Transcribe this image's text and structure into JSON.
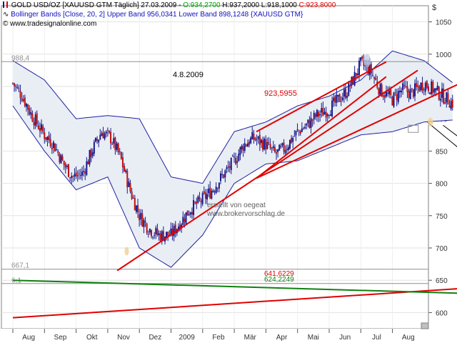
{
  "legend": {
    "line1": {
      "instrument": "GOLD USD/OZ [XAUUSD GTM",
      "period": "Täglich] 27.03.2009 -",
      "open": "O:934,2700",
      "high": "H:937,2000",
      "low": "L:918,1000",
      "close": "C:923,8000"
    },
    "line2": {
      "indicator": "Bollinger Bands [Close, 20, 2]",
      "upper": "Upper Band 956,0341",
      "lower": "Lower Band 898,1248",
      "source": "{XAUUSD GTM}"
    },
    "copyright": "© www.tradesignalonline.com"
  },
  "currency_symbol": "$",
  "annotations": {
    "date_label": "4.8.2009",
    "price_label": "923,5955",
    "credit_line1": "erstellt von oegeat",
    "credit_line2": "www.brokervorschlag.de",
    "red_line_value": "641,6229",
    "green_line_value": "624,2249",
    "level_high": "988,4",
    "level_low": "667,1",
    "level_other": "6,1"
  },
  "colors": {
    "candle": "#1a1a8c",
    "band": "#2020a0",
    "band_fill": "#e8eef4",
    "trend_red": "#e00000",
    "trend_green": "#108010",
    "arrow": "#000000",
    "open_text": "#00a000",
    "close_text": "#e00000",
    "band_text": "#1010c0"
  },
  "chart_data": {
    "type": "candlestick",
    "y_axis": {
      "min": 575,
      "max": 1075,
      "ticks": [
        600,
        650,
        700,
        750,
        800,
        850,
        900,
        950,
        1000,
        1050
      ]
    },
    "x_axis": {
      "ticks": [
        "Aug",
        "Sep",
        "Okt",
        "Nov",
        "Dez",
        "2009",
        "Feb",
        "Mär",
        "Apr",
        "Mai",
        "Jun",
        "Jul",
        "Aug"
      ]
    },
    "horizontal_levels": [
      {
        "label": "988,4",
        "value": 988.4
      },
      {
        "label": "667,1",
        "value": 667.1
      },
      {
        "label": "6,1",
        "value": 645
      }
    ],
    "close_path": [
      [
        0,
        955
      ],
      [
        0.3,
        935
      ],
      [
        0.6,
        905
      ],
      [
        1.0,
        875
      ],
      [
        1.3,
        860
      ],
      [
        1.6,
        830
      ],
      [
        1.9,
        810
      ],
      [
        2.2,
        815
      ],
      [
        2.5,
        850
      ],
      [
        2.8,
        880
      ],
      [
        3.1,
        870
      ],
      [
        3.4,
        840
      ],
      [
        3.7,
        790
      ],
      [
        4.0,
        750
      ],
      [
        4.3,
        730
      ],
      [
        4.6,
        720
      ],
      [
        5.0,
        720
      ],
      [
        5.3,
        740
      ],
      [
        5.6,
        760
      ],
      [
        6.0,
        775
      ],
      [
        6.3,
        790
      ],
      [
        6.6,
        810
      ],
      [
        7.0,
        835
      ],
      [
        7.3,
        860
      ],
      [
        7.6,
        870
      ],
      [
        8.0,
        860
      ],
      [
        8.3,
        845
      ],
      [
        8.6,
        855
      ],
      [
        9.0,
        880
      ],
      [
        9.3,
        890
      ],
      [
        9.6,
        905
      ],
      [
        10.0,
        915
      ],
      [
        10.3,
        930
      ],
      [
        10.6,
        945
      ],
      [
        11.0,
        985
      ],
      [
        11.3,
        975
      ],
      [
        11.6,
        945
      ],
      [
        12.0,
        930
      ],
      [
        12.3,
        945
      ],
      [
        12.6,
        940
      ],
      [
        13.0,
        955
      ],
      [
        13.3,
        945
      ],
      [
        13.6,
        935
      ],
      [
        13.9,
        924
      ]
    ],
    "upper_band": [
      [
        0,
        990
      ],
      [
        1,
        960
      ],
      [
        2,
        900
      ],
      [
        3,
        905
      ],
      [
        4,
        900
      ],
      [
        5,
        810
      ],
      [
        6,
        800
      ],
      [
        7,
        880
      ],
      [
        8,
        895
      ],
      [
        9,
        920
      ],
      [
        10,
        935
      ],
      [
        11,
        960
      ],
      [
        12,
        1005
      ],
      [
        13,
        990
      ],
      [
        13.9,
        956
      ]
    ],
    "lower_band": [
      [
        0,
        920
      ],
      [
        1,
        850
      ],
      [
        2,
        790
      ],
      [
        3,
        810
      ],
      [
        4,
        700
      ],
      [
        5,
        670
      ],
      [
        6,
        720
      ],
      [
        7,
        800
      ],
      [
        8,
        830
      ],
      [
        9,
        835
      ],
      [
        10,
        855
      ],
      [
        11,
        875
      ],
      [
        12,
        880
      ],
      [
        13,
        895
      ],
      [
        13.9,
        898
      ]
    ],
    "trend_lines": [
      {
        "color": "red",
        "points": [
          [
            3.3,
            665
          ],
          [
            12.8,
            975
          ]
        ]
      },
      {
        "color": "red",
        "points": [
          [
            7.7,
            808
          ],
          [
            19.5,
            1077
          ]
        ]
      },
      {
        "color": "red",
        "points": [
          [
            7.7,
            808
          ],
          [
            11.8,
            965
          ]
        ]
      },
      {
        "color": "red",
        "points": [
          [
            7.7,
            880
          ],
          [
            11.8,
            988
          ]
        ]
      },
      {
        "color": "red",
        "points": [
          [
            0,
            592
          ],
          [
            26,
            675
          ]
        ]
      },
      {
        "color": "green",
        "points": [
          [
            0,
            650
          ],
          [
            26,
            613
          ]
        ]
      }
    ],
    "projection_arrows": [
      {
        "from": [
          13.1,
          895
        ],
        "to": [
          16.1,
          773
        ]
      },
      {
        "from": [
          13.6,
          890
        ],
        "to": [
          18.8,
          697
        ]
      }
    ]
  }
}
